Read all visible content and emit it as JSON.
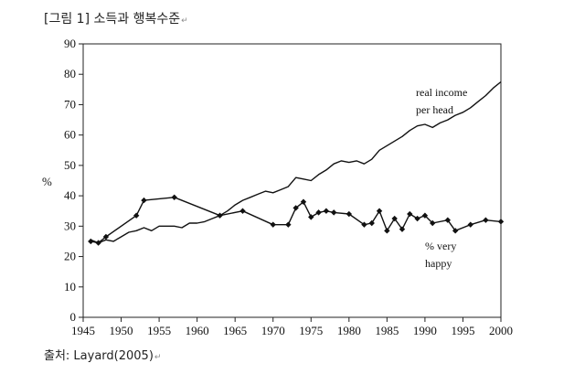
{
  "figure": {
    "caption": "[그림 1] 소득과 행복수준",
    "source": "출처: Layard(2005)",
    "return_mark": "↵"
  },
  "chart_data": {
    "type": "line",
    "ylabel": "%",
    "xlim": [
      1945,
      2000
    ],
    "ylim": [
      0,
      90
    ],
    "x_ticks": [
      1945,
      1950,
      1955,
      1960,
      1965,
      1970,
      1975,
      1980,
      1985,
      1990,
      1995,
      2000
    ],
    "y_ticks": [
      0,
      10,
      20,
      30,
      40,
      50,
      60,
      70,
      80,
      90
    ],
    "grid": false,
    "colors": {
      "line": "#111111",
      "axis": "#222222"
    },
    "series": [
      {
        "name": "real income per head",
        "label_lines": [
          "real income",
          "per head"
        ],
        "markers": false,
        "x": [
          1946,
          1947,
          1948,
          1949,
          1950,
          1951,
          1952,
          1953,
          1954,
          1955,
          1956,
          1957,
          1958,
          1959,
          1960,
          1961,
          1962,
          1963,
          1964,
          1965,
          1966,
          1967,
          1968,
          1969,
          1970,
          1971,
          1972,
          1973,
          1974,
          1975,
          1976,
          1977,
          1978,
          1979,
          1980,
          1981,
          1982,
          1983,
          1984,
          1985,
          1986,
          1987,
          1988,
          1989,
          1990,
          1991,
          1992,
          1993,
          1994,
          1995,
          1996,
          1997,
          1998,
          1999,
          2000
        ],
        "y": [
          25.5,
          24.5,
          25.5,
          25,
          26.5,
          28,
          28.5,
          29.5,
          28.5,
          30,
          30,
          30,
          29.5,
          31,
          31,
          31.5,
          32.5,
          33.5,
          35,
          37,
          38.5,
          39.5,
          40.5,
          41.5,
          41,
          42,
          43,
          46,
          45.5,
          45,
          47,
          48.5,
          50.5,
          51.5,
          51,
          51.5,
          50.5,
          52,
          55,
          56.5,
          58,
          59.5,
          61.5,
          63,
          63.5,
          62.5,
          64,
          65,
          66.5,
          67.5,
          69,
          71,
          73,
          75.5,
          77.5
        ]
      },
      {
        "name": "% very happy",
        "label_lines": [
          "% very",
          "happy"
        ],
        "markers": true,
        "x": [
          1946,
          1947,
          1948,
          1952,
          1953,
          1957,
          1963,
          1966,
          1970,
          1972,
          1973,
          1974,
          1975,
          1976,
          1977,
          1978,
          1980,
          1982,
          1983,
          1984,
          1985,
          1986,
          1987,
          1988,
          1989,
          1990,
          1991,
          1993,
          1994,
          1996,
          1998,
          2000
        ],
        "y": [
          25,
          24.5,
          26.5,
          33.5,
          38.5,
          39.5,
          33.5,
          35,
          30.5,
          30.5,
          36,
          38,
          33,
          34.5,
          35,
          34.5,
          34,
          30.5,
          31,
          35,
          28.5,
          32.5,
          29,
          34,
          32.5,
          33.5,
          31,
          32,
          28.5,
          30.5,
          32,
          31.5
        ]
      }
    ]
  }
}
